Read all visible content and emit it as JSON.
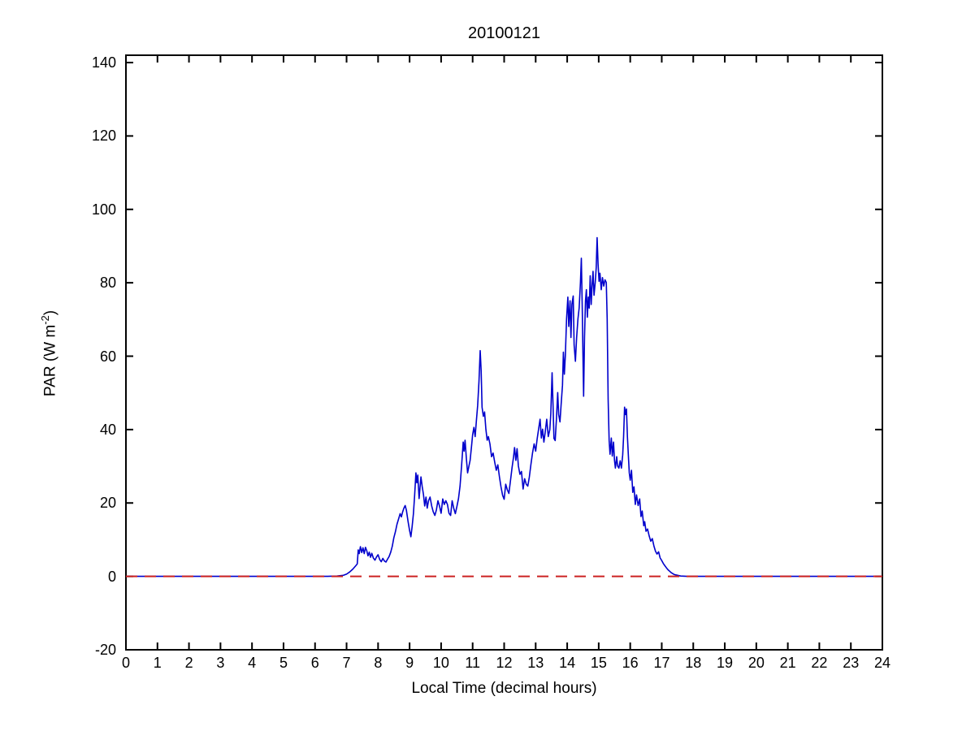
{
  "figure": {
    "background": "#ffffff",
    "axis_color": "#000000"
  },
  "chart_data": {
    "type": "line",
    "title": "20100121",
    "xlabel": "Local Time (decimal hours)",
    "ylabel": "PAR (W m^-2)",
    "ylabel_parts": {
      "prefix": "PAR (W m",
      "sup": "-2",
      "suffix": ")"
    },
    "xlim": [
      0,
      24
    ],
    "ylim": [
      -20,
      142
    ],
    "xticks": [
      0,
      1,
      2,
      3,
      4,
      5,
      6,
      7,
      8,
      9,
      10,
      11,
      12,
      13,
      14,
      15,
      16,
      17,
      18,
      19,
      20,
      21,
      22,
      23,
      24
    ],
    "yticks": [
      -20,
      0,
      20,
      40,
      60,
      80,
      100,
      120,
      140
    ],
    "grid": false,
    "legend": "none",
    "series": [
      {
        "name": "PAR",
        "color": "#0000CC",
        "style": "solid",
        "points": [
          [
            0,
            0
          ],
          [
            0.5,
            0
          ],
          [
            1,
            0
          ],
          [
            1.5,
            0
          ],
          [
            2,
            0
          ],
          [
            2.5,
            0
          ],
          [
            3,
            0
          ],
          [
            3.5,
            0
          ],
          [
            4,
            0
          ],
          [
            4.5,
            0
          ],
          [
            5,
            0
          ],
          [
            5.5,
            0
          ],
          [
            6,
            0
          ],
          [
            6.4,
            0
          ],
          [
            6.7,
            0.1
          ],
          [
            6.9,
            0.3
          ],
          [
            7.0,
            0.6
          ],
          [
            7.1,
            1.2
          ],
          [
            7.2,
            2.0
          ],
          [
            7.3,
            3.0
          ],
          [
            7.34,
            3.4
          ],
          [
            7.37,
            7.2
          ],
          [
            7.4,
            6.2
          ],
          [
            7.44,
            8.1
          ],
          [
            7.48,
            6.5
          ],
          [
            7.52,
            7.8
          ],
          [
            7.56,
            6.2
          ],
          [
            7.6,
            7.9
          ],
          [
            7.64,
            7.0
          ],
          [
            7.68,
            5.6
          ],
          [
            7.72,
            6.6
          ],
          [
            7.76,
            5.2
          ],
          [
            7.8,
            6.3
          ],
          [
            7.85,
            5.0
          ],
          [
            7.9,
            4.4
          ],
          [
            7.95,
            5.3
          ],
          [
            8.0,
            5.9
          ],
          [
            8.05,
            4.6
          ],
          [
            8.1,
            4.0
          ],
          [
            8.15,
            4.9
          ],
          [
            8.2,
            4.2
          ],
          [
            8.25,
            3.9
          ],
          [
            8.3,
            4.7
          ],
          [
            8.35,
            5.4
          ],
          [
            8.4,
            6.6
          ],
          [
            8.45,
            8.2
          ],
          [
            8.5,
            10.5
          ],
          [
            8.55,
            12.2
          ],
          [
            8.6,
            14.2
          ],
          [
            8.65,
            15.6
          ],
          [
            8.7,
            17.1
          ],
          [
            8.74,
            16.2
          ],
          [
            8.78,
            17.6
          ],
          [
            8.82,
            18.6
          ],
          [
            8.86,
            19.3
          ],
          [
            8.9,
            18.0
          ],
          [
            8.95,
            15.0
          ],
          [
            9.0,
            12.5
          ],
          [
            9.04,
            10.8
          ],
          [
            9.08,
            13.5
          ],
          [
            9.12,
            17.0
          ],
          [
            9.16,
            22.0
          ],
          [
            9.2,
            28.2
          ],
          [
            9.23,
            25.5
          ],
          [
            9.26,
            27.6
          ],
          [
            9.3,
            21.2
          ],
          [
            9.33,
            24.0
          ],
          [
            9.36,
            27.1
          ],
          [
            9.4,
            24.5
          ],
          [
            9.44,
            22.3
          ],
          [
            9.48,
            19.2
          ],
          [
            9.52,
            21.6
          ],
          [
            9.56,
            18.6
          ],
          [
            9.6,
            20.6
          ],
          [
            9.65,
            21.6
          ],
          [
            9.7,
            19.2
          ],
          [
            9.75,
            17.6
          ],
          [
            9.8,
            16.6
          ],
          [
            9.85,
            18.1
          ],
          [
            9.9,
            20.6
          ],
          [
            9.95,
            19.1
          ],
          [
            10.0,
            17.2
          ],
          [
            10.05,
            21.1
          ],
          [
            10.1,
            19.6
          ],
          [
            10.15,
            20.6
          ],
          [
            10.2,
            19.6
          ],
          [
            10.25,
            17.2
          ],
          [
            10.3,
            16.6
          ],
          [
            10.35,
            20.6
          ],
          [
            10.4,
            18.6
          ],
          [
            10.45,
            17.1
          ],
          [
            10.5,
            19.0
          ],
          [
            10.55,
            21.2
          ],
          [
            10.6,
            24.6
          ],
          [
            10.65,
            30.1
          ],
          [
            10.7,
            36.6
          ],
          [
            10.73,
            34.1
          ],
          [
            10.76,
            37.1
          ],
          [
            10.8,
            32.1
          ],
          [
            10.84,
            28.2
          ],
          [
            10.88,
            30.0
          ],
          [
            10.92,
            31.6
          ],
          [
            10.96,
            35.1
          ],
          [
            11.0,
            38.6
          ],
          [
            11.04,
            40.6
          ],
          [
            11.08,
            38.1
          ],
          [
            11.12,
            42.6
          ],
          [
            11.16,
            46.6
          ],
          [
            11.2,
            53.1
          ],
          [
            11.24,
            61.5
          ],
          [
            11.27,
            56.0
          ],
          [
            11.3,
            46.1
          ],
          [
            11.34,
            43.6
          ],
          [
            11.38,
            44.8
          ],
          [
            11.42,
            40.1
          ],
          [
            11.46,
            37.1
          ],
          [
            11.5,
            38.1
          ],
          [
            11.55,
            36.1
          ],
          [
            11.6,
            32.6
          ],
          [
            11.65,
            33.6
          ],
          [
            11.7,
            31.1
          ],
          [
            11.75,
            28.9
          ],
          [
            11.8,
            30.4
          ],
          [
            11.85,
            27.1
          ],
          [
            11.9,
            24.4
          ],
          [
            11.95,
            22.1
          ],
          [
            12.0,
            21.0
          ],
          [
            12.05,
            25.1
          ],
          [
            12.1,
            23.6
          ],
          [
            12.15,
            22.6
          ],
          [
            12.2,
            26.1
          ],
          [
            12.25,
            29.6
          ],
          [
            12.3,
            32.6
          ],
          [
            12.33,
            35.1
          ],
          [
            12.37,
            31.6
          ],
          [
            12.41,
            34.8
          ],
          [
            12.45,
            30.1
          ],
          [
            12.5,
            27.8
          ],
          [
            12.55,
            28.6
          ],
          [
            12.6,
            23.8
          ],
          [
            12.65,
            26.6
          ],
          [
            12.7,
            25.1
          ],
          [
            12.75,
            24.6
          ],
          [
            12.8,
            27.1
          ],
          [
            12.85,
            30.6
          ],
          [
            12.9,
            33.6
          ],
          [
            12.95,
            36.1
          ],
          [
            13.0,
            34.1
          ],
          [
            13.05,
            37.6
          ],
          [
            13.1,
            40.6
          ],
          [
            13.14,
            42.8
          ],
          [
            13.18,
            37.7
          ],
          [
            13.22,
            40.1
          ],
          [
            13.26,
            36.6
          ],
          [
            13.3,
            39.1
          ],
          [
            13.35,
            42.8
          ],
          [
            13.4,
            38.1
          ],
          [
            13.45,
            40.0
          ],
          [
            13.48,
            44.3
          ],
          [
            13.52,
            55.5
          ],
          [
            13.55,
            47.1
          ],
          [
            13.58,
            37.6
          ],
          [
            13.62,
            37.0
          ],
          [
            13.66,
            43.1
          ],
          [
            13.7,
            50.1
          ],
          [
            13.73,
            44.1
          ],
          [
            13.77,
            42.1
          ],
          [
            13.81,
            47.1
          ],
          [
            13.85,
            52.1
          ],
          [
            13.88,
            61.1
          ],
          [
            13.91,
            55.1
          ],
          [
            13.94,
            60.1
          ],
          [
            13.98,
            70.1
          ],
          [
            14.02,
            76.1
          ],
          [
            14.05,
            68.1
          ],
          [
            14.09,
            75.1
          ],
          [
            14.12,
            65.1
          ],
          [
            14.15,
            74.1
          ],
          [
            14.19,
            76.4
          ],
          [
            14.22,
            63.1
          ],
          [
            14.26,
            58.6
          ],
          [
            14.3,
            65.1
          ],
          [
            14.34,
            70.1
          ],
          [
            14.38,
            73.1
          ],
          [
            14.42,
            80.1
          ],
          [
            14.45,
            86.7
          ],
          [
            14.48,
            72.1
          ],
          [
            14.5,
            60.1
          ],
          [
            14.52,
            49.1
          ],
          [
            14.55,
            65.1
          ],
          [
            14.58,
            75.1
          ],
          [
            14.61,
            78.1
          ],
          [
            14.64,
            70.6
          ],
          [
            14.67,
            76.1
          ],
          [
            14.7,
            73.1
          ],
          [
            14.73,
            81.9
          ],
          [
            14.76,
            74.1
          ],
          [
            14.79,
            79.1
          ],
          [
            14.82,
            83.1
          ],
          [
            14.85,
            76.6
          ],
          [
            14.89,
            80.1
          ],
          [
            14.92,
            84.1
          ],
          [
            14.95,
            92.3
          ],
          [
            14.98,
            85.1
          ],
          [
            15.01,
            80.4
          ],
          [
            15.04,
            82.6
          ],
          [
            15.08,
            78.1
          ],
          [
            15.12,
            81.4
          ],
          [
            15.16,
            79.1
          ],
          [
            15.2,
            80.8
          ],
          [
            15.24,
            80.1
          ],
          [
            15.27,
            70.1
          ],
          [
            15.3,
            48.1
          ],
          [
            15.33,
            37.1
          ],
          [
            15.36,
            33.3
          ],
          [
            15.4,
            37.7
          ],
          [
            15.43,
            32.8
          ],
          [
            15.47,
            36.6
          ],
          [
            15.5,
            31.6
          ],
          [
            15.53,
            29.5
          ],
          [
            15.57,
            32.6
          ],
          [
            15.6,
            30.1
          ],
          [
            15.64,
            29.5
          ],
          [
            15.68,
            31.5
          ],
          [
            15.72,
            29.5
          ],
          [
            15.76,
            33.1
          ],
          [
            15.79,
            38.1
          ],
          [
            15.82,
            46.1
          ],
          [
            15.85,
            44.1
          ],
          [
            15.88,
            45.6
          ],
          [
            15.91,
            38.1
          ],
          [
            15.94,
            33.3
          ],
          [
            15.97,
            28.2
          ],
          [
            16.0,
            26.2
          ],
          [
            16.04,
            28.9
          ],
          [
            16.08,
            22.9
          ],
          [
            16.12,
            24.4
          ],
          [
            16.16,
            19.6
          ],
          [
            16.2,
            22.2
          ],
          [
            16.25,
            19.3
          ],
          [
            16.3,
            21.1
          ],
          [
            16.34,
            16.3
          ],
          [
            16.38,
            17.8
          ],
          [
            16.43,
            13.8
          ],
          [
            16.46,
            14.9
          ],
          [
            16.5,
            12.3
          ],
          [
            16.55,
            12.9
          ],
          [
            16.6,
            11.1
          ],
          [
            16.65,
            9.6
          ],
          [
            16.7,
            10.3
          ],
          [
            16.75,
            8.3
          ],
          [
            16.8,
            6.9
          ],
          [
            16.85,
            6.1
          ],
          [
            16.9,
            6.7
          ],
          [
            16.95,
            5.0
          ],
          [
            17.0,
            4.3
          ],
          [
            17.05,
            3.5
          ],
          [
            17.1,
            2.9
          ],
          [
            17.15,
            2.3
          ],
          [
            17.2,
            1.8
          ],
          [
            17.25,
            1.4
          ],
          [
            17.3,
            1.0
          ],
          [
            17.4,
            0.5
          ],
          [
            17.5,
            0.3
          ],
          [
            17.6,
            0.1
          ],
          [
            17.8,
            0
          ],
          [
            18,
            0
          ],
          [
            18.5,
            0
          ],
          [
            19,
            0
          ],
          [
            19.5,
            0
          ],
          [
            20,
            0
          ],
          [
            20.5,
            0
          ],
          [
            21,
            0
          ],
          [
            21.5,
            0
          ],
          [
            22,
            0
          ],
          [
            22.5,
            0
          ],
          [
            23,
            0
          ],
          [
            23.5,
            0
          ],
          [
            24,
            0
          ]
        ]
      },
      {
        "name": "zero-reference",
        "color": "#CC2222",
        "style": "dashed",
        "points": [
          [
            0,
            0
          ],
          [
            24,
            0
          ]
        ]
      }
    ]
  }
}
